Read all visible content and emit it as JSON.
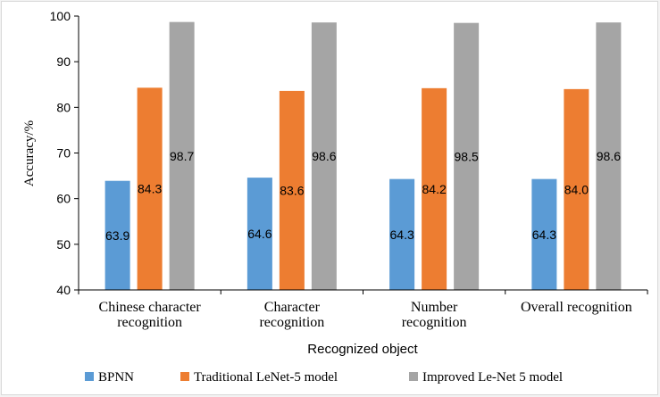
{
  "chart_data": {
    "type": "bar",
    "title": "",
    "xlabel": "Recognized object",
    "ylabel": "Accuracy/%",
    "ylim": [
      40,
      100
    ],
    "yticks": [
      40,
      50,
      60,
      70,
      80,
      90,
      100
    ],
    "grid": false,
    "legend_position": "bottom",
    "categories": [
      [
        "Chinese character",
        "recognition"
      ],
      [
        "Character",
        "recognition"
      ],
      [
        "Number",
        "recognition"
      ],
      [
        "Overall recognition"
      ]
    ],
    "series": [
      {
        "name": "BPNN",
        "color": "#5b9bd5",
        "values": [
          63.9,
          64.6,
          64.3,
          64.3
        ],
        "labels": [
          "63.9",
          "64.6",
          "64.3",
          "64.3"
        ]
      },
      {
        "name": "Traditional LeNet-5 model",
        "color": "#ed7d31",
        "values": [
          84.3,
          83.6,
          84.2,
          84.0
        ],
        "labels": [
          "84.3",
          "83.6",
          "84.2",
          "84.0"
        ]
      },
      {
        "name": "Improved Le-Net 5 model",
        "color": "#a5a5a5",
        "values": [
          98.7,
          98.6,
          98.5,
          98.6
        ],
        "labels": [
          "98.7",
          "98.6",
          "98.5",
          "98.6"
        ]
      }
    ]
  }
}
